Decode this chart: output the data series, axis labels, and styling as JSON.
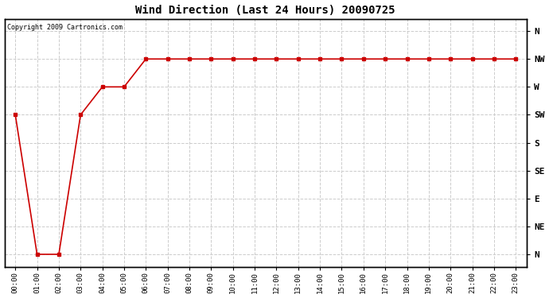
{
  "title": "Wind Direction (Last 24 Hours) 20090725",
  "copyright_text": "Copyright 2009 Cartronics.com",
  "background_color": "#ffffff",
  "plot_bg_color": "#ffffff",
  "line_color": "#cc0000",
  "marker": "s",
  "marker_size": 2.5,
  "grid_color": "#cccccc",
  "grid_style": "--",
  "x_labels": [
    "00:00",
    "01:00",
    "02:00",
    "03:00",
    "04:00",
    "05:00",
    "06:00",
    "07:00",
    "08:00",
    "09:00",
    "10:00",
    "11:00",
    "12:00",
    "13:00",
    "14:00",
    "15:00",
    "16:00",
    "17:00",
    "18:00",
    "19:00",
    "20:00",
    "21:00",
    "22:00",
    "23:00"
  ],
  "y_tick_labels_right": [
    "N",
    "NW",
    "W",
    "SW",
    "S",
    "SE",
    "E",
    "NE",
    "N"
  ],
  "y_tick_values": [
    360,
    315,
    270,
    225,
    180,
    135,
    90,
    45,
    0
  ],
  "y_data": [
    225,
    0,
    0,
    225,
    270,
    270,
    315,
    315,
    315,
    315,
    315,
    315,
    315,
    315,
    315,
    315,
    315,
    315,
    315,
    315,
    315,
    315,
    315,
    315
  ],
  "ylim_min": -20,
  "ylim_max": 380
}
